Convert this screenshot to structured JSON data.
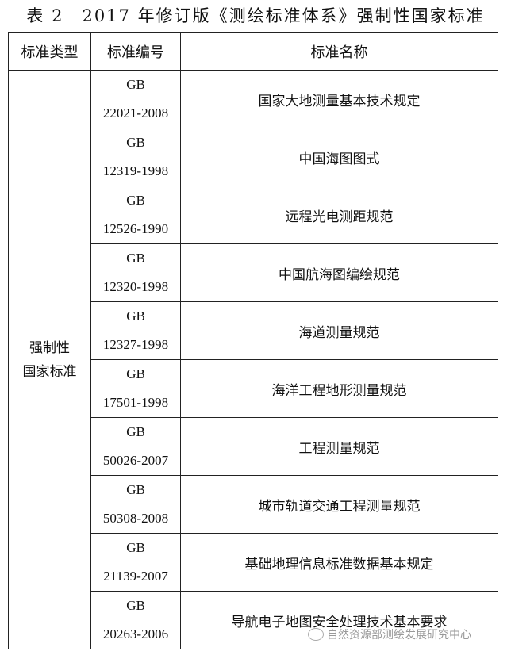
{
  "title": "表 2　2017 年修订版《测绘标准体系》强制性国家标准",
  "headers": [
    "标准类型",
    "标准编号",
    "标准名称"
  ],
  "type_label_line1": "强制性",
  "type_label_line2": "国家标准",
  "rows": [
    {
      "prefix": "GB",
      "number": "22021-2008",
      "name": "国家大地测量基本技术规定"
    },
    {
      "prefix": "GB",
      "number": "12319-1998",
      "name": "中国海图图式"
    },
    {
      "prefix": "GB",
      "number": "12526-1990",
      "name": "远程光电测距规范"
    },
    {
      "prefix": "GB",
      "number": "12320-1998",
      "name": "中国航海图编绘规范"
    },
    {
      "prefix": "GB",
      "number": "12327-1998",
      "name": "海道测量规范"
    },
    {
      "prefix": "GB",
      "number": "17501-1998",
      "name": "海洋工程地形测量规范"
    },
    {
      "prefix": "GB",
      "number": "50026-2007",
      "name": "工程测量规范"
    },
    {
      "prefix": "GB",
      "number": "50308-2008",
      "name": "城市轨道交通工程测量规范"
    },
    {
      "prefix": "GB",
      "number": "21139-2007",
      "name": "基础地理信息标准数据基本规定"
    },
    {
      "prefix": "GB",
      "number": "20263-2006",
      "name": "导航电子地图安全处理技术基本要求"
    }
  ],
  "watermark": {
    "icon": "wechat-icon",
    "text": "自然资源部测绘发展研究中心"
  }
}
